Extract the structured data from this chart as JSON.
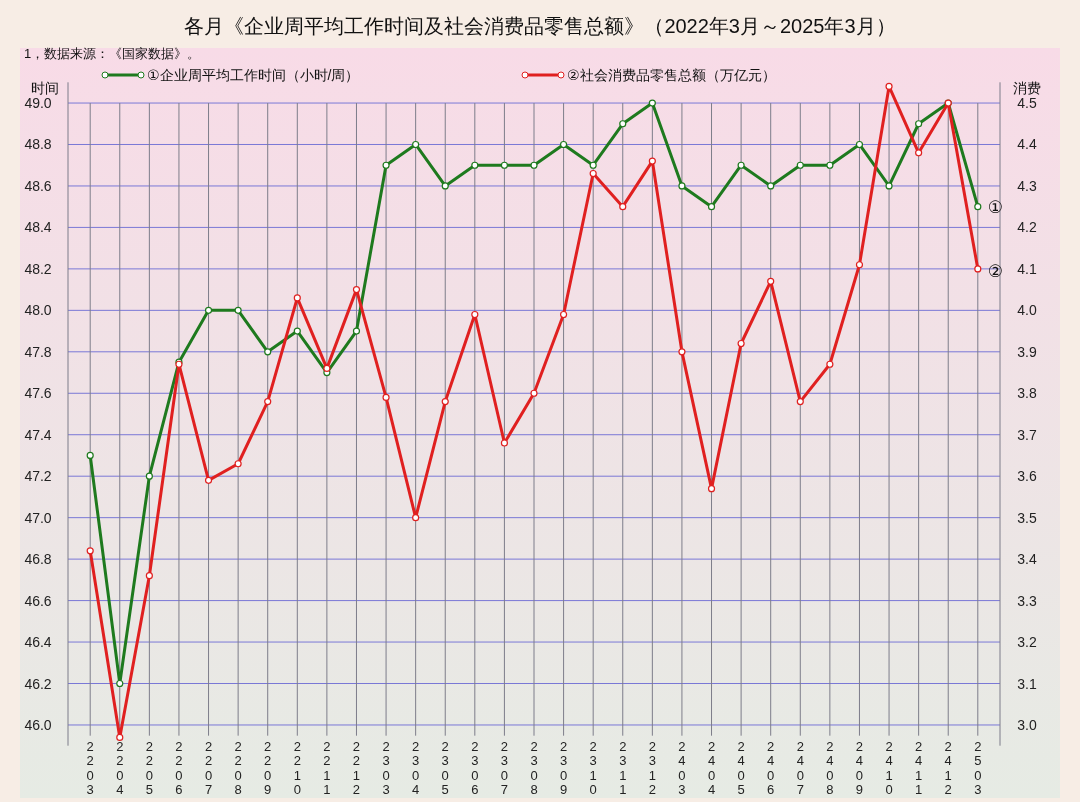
{
  "chart_data": {
    "type": "line",
    "title": "各月《企业周平均工作时间及社会消费品零售总额》（2022年3月～2025年3月）",
    "ylabel": "时间",
    "y2label": "消费",
    "annotations": [
      "1，数据来源：《国家数据》。",
      {
        "text": "①",
        "x": "2503",
        "y": 48.5
      },
      {
        "text": "②",
        "x": "2503",
        "y": 48.19
      }
    ],
    "categories": [
      "2203",
      "2204",
      "2205",
      "2206",
      "2207",
      "2208",
      "2209",
      "2210",
      "2211",
      "2212",
      "2303",
      "2304",
      "2305",
      "2306",
      "2307",
      "2308",
      "2309",
      "2310",
      "2311",
      "2312",
      "2403",
      "2404",
      "2405",
      "2406",
      "2407",
      "2408",
      "2409",
      "2410",
      "2411",
      "2412",
      "2503"
    ],
    "series": [
      {
        "name": "①企业周平均工作时间（小时/周）",
        "color": "#1e7a1e",
        "values": [
          47.3,
          46.2,
          47.2,
          47.75,
          48.0,
          48.0,
          47.8,
          47.9,
          47.7,
          47.9,
          48.7,
          48.8,
          48.6,
          48.7,
          48.7,
          48.7,
          48.8,
          48.7,
          48.9,
          49.0,
          48.6,
          48.5,
          48.7,
          48.6,
          48.7,
          48.7,
          48.8,
          48.6,
          48.9,
          49.0,
          48.5
        ]
      },
      {
        "name": "②社会消费品零售总额（万亿元）",
        "color": "#e02020",
        "axis": "y2",
        "values": [
          3.42,
          2.97,
          3.36,
          3.87,
          3.59,
          3.63,
          3.78,
          4.03,
          3.86,
          4.05,
          3.79,
          3.5,
          3.78,
          3.99,
          3.68,
          3.8,
          3.99,
          4.33,
          4.25,
          4.36,
          3.9,
          3.57,
          3.92,
          4.07,
          3.78,
          3.87,
          4.11,
          4.54,
          4.38,
          4.5,
          4.1
        ]
      }
    ],
    "ylim": [
      45.9,
      49.1
    ],
    "yticks": [
      {
        "value": 46.0,
        "label": "46.0"
      },
      {
        "value": 46.2,
        "label": "46.2"
      },
      {
        "value": 46.4,
        "label": "46.4"
      },
      {
        "value": 46.6,
        "label": "46.6"
      },
      {
        "value": 46.8,
        "label": "46.8"
      },
      {
        "value": 47.0,
        "label": "47.0"
      },
      {
        "value": 47.2,
        "label": "47.2"
      },
      {
        "value": 47.4,
        "label": "47.4"
      },
      {
        "value": 47.6,
        "label": "47.6"
      },
      {
        "value": 47.8,
        "label": "47.8"
      },
      {
        "value": 48.0,
        "label": "48.0"
      },
      {
        "value": 48.2,
        "label": "48.2"
      },
      {
        "value": 48.4,
        "label": "48.4"
      },
      {
        "value": 48.6,
        "label": "48.6"
      },
      {
        "value": 48.8,
        "label": "48.8"
      },
      {
        "value": 49.0,
        "label": "49.0"
      }
    ],
    "y2lim": [
      2.95,
      4.55
    ],
    "y2ticks": [
      {
        "value": 3.0,
        "label": "3.0"
      },
      3.1,
      3.2,
      3.3,
      3.4,
      3.5,
      3.6,
      3.7,
      3.8,
      3.9,
      {
        "value": 4.0,
        "label": "4.0"
      },
      4.1,
      4.2,
      4.3,
      4.4,
      4.5
    ],
    "grid": true,
    "legend": "top",
    "marker": "circle",
    "line_style": "solid"
  }
}
